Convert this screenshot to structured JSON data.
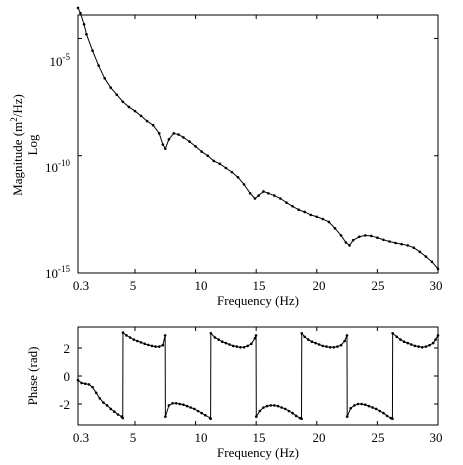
{
  "chart_data": [
    {
      "type": "line",
      "title": "",
      "xlabel": "Frequency (Hz)",
      "ylabel_line1": "Magnitude (m",
      "ylabel_sup": "2",
      "ylabel_line1_end": "/Hz)",
      "ylabel_line2": "Log",
      "xlim": [
        0.3,
        30
      ],
      "ylim": [
        1e-15,
        0.0001
      ],
      "yscale": "log",
      "grid": false,
      "xticks": [
        0.3,
        5,
        10,
        15,
        20,
        25,
        30
      ],
      "xtick_labels": [
        "0.3",
        "5",
        "10",
        "15",
        "20",
        "25",
        "30"
      ],
      "yticks": [
        1e-05,
        1e-10,
        1e-15
      ],
      "ytick_bases": [
        "10",
        "10",
        "10"
      ],
      "ytick_exponents": [
        "-5",
        "-10",
        "-15"
      ],
      "series": [
        {
          "color": "#000000",
          "marker": "dot",
          "x": [
            0.3,
            0.5,
            0.8,
            1.0,
            1.5,
            2.0,
            2.5,
            3.0,
            3.5,
            4.0,
            4.5,
            5.0,
            5.5,
            6.0,
            6.5,
            7.0,
            7.3,
            7.5,
            7.8,
            8.2,
            8.6,
            9.0,
            9.5,
            10.0,
            10.5,
            11.0,
            11.5,
            12.0,
            12.5,
            13.0,
            13.5,
            14.0,
            14.5,
            14.9,
            15.2,
            15.6,
            16.0,
            16.5,
            17.0,
            17.5,
            18.0,
            18.5,
            19.0,
            19.5,
            20.0,
            20.5,
            21.0,
            21.5,
            22.0,
            22.4,
            22.7,
            23.0,
            23.5,
            24.0,
            24.5,
            25.0,
            25.5,
            26.0,
            26.5,
            27.0,
            27.5,
            28.0,
            28.5,
            29.0,
            29.5,
            30.0
          ],
          "y": [
            0.0002,
            0.00012,
            4e-05,
            1.5e-05,
            3e-06,
            7e-07,
            2e-07,
            8e-08,
            4e-08,
            2e-08,
            1.2e-08,
            8e-09,
            5e-09,
            3e-09,
            2e-09,
            9e-10,
            3e-10,
            2e-10,
            5e-10,
            9e-10,
            8e-10,
            6e-10,
            4e-10,
            2.5e-10,
            1.5e-10,
            1e-10,
            6e-11,
            4.5e-11,
            3e-11,
            2e-11,
            1.2e-11,
            6e-12,
            2.5e-12,
            1.5e-12,
            2e-12,
            3e-12,
            2.5e-12,
            2e-12,
            1.5e-12,
            1e-12,
            7e-13,
            5e-13,
            4e-13,
            3e-13,
            2.5e-13,
            2e-13,
            1.5e-13,
            8e-14,
            4e-14,
            2e-14,
            1.5e-14,
            2.5e-14,
            3.5e-14,
            4e-14,
            3.8e-14,
            3.2e-14,
            2.6e-14,
            2.2e-14,
            1.9e-14,
            1.7e-14,
            1.5e-14,
            1.2e-14,
            8e-15,
            5e-15,
            3e-15,
            1.5e-15
          ]
        }
      ]
    },
    {
      "type": "line",
      "title": "",
      "xlabel": "Frequency (Hz)",
      "ylabel": "Phase (rad)",
      "xlim": [
        0.3,
        30
      ],
      "ylim": [
        -3.5,
        3.5
      ],
      "grid": false,
      "xticks": [
        0.3,
        5,
        10,
        15,
        20,
        25,
        30
      ],
      "xtick_labels": [
        "0.3",
        "5",
        "10",
        "15",
        "20",
        "25",
        "30"
      ],
      "yticks": [
        2,
        0,
        -2
      ],
      "ytick_labels": [
        "2",
        "0",
        "-2"
      ],
      "series": [
        {
          "color": "#000000",
          "marker": "dot",
          "x": [
            0.3,
            0.6,
            0.9,
            1.2,
            1.5,
            1.8,
            2.1,
            2.4,
            2.7,
            3.0,
            3.3,
            3.6,
            3.9,
            3.99,
            4.01,
            4.3,
            4.6,
            4.9,
            5.2,
            5.5,
            5.8,
            6.1,
            6.4,
            6.7,
            7.0,
            7.3,
            7.49,
            7.51,
            7.8,
            8.1,
            8.4,
            8.7,
            9.0,
            9.3,
            9.6,
            9.9,
            10.2,
            10.5,
            10.8,
            11.2,
            11.24,
            11.26,
            11.6,
            11.9,
            12.2,
            12.5,
            12.8,
            13.1,
            13.4,
            13.7,
            14.0,
            14.3,
            14.6,
            14.9,
            14.99,
            15.01,
            15.3,
            15.6,
            15.9,
            16.2,
            16.5,
            16.8,
            17.1,
            17.4,
            17.7,
            18.0,
            18.3,
            18.6,
            18.74,
            18.76,
            19.0,
            19.3,
            19.6,
            19.9,
            20.2,
            20.5,
            20.8,
            21.1,
            21.4,
            21.7,
            22.0,
            22.3,
            22.49,
            22.51,
            22.8,
            23.1,
            23.4,
            23.7,
            24.0,
            24.3,
            24.6,
            24.9,
            25.2,
            25.5,
            25.8,
            26.1,
            26.24,
            26.26,
            26.6,
            26.9,
            27.2,
            27.5,
            27.8,
            28.1,
            28.4,
            28.7,
            29.0,
            29.3,
            29.6,
            29.8,
            30.0
          ],
          "y": [
            -0.3,
            -0.5,
            -0.55,
            -0.6,
            -0.8,
            -1.2,
            -1.6,
            -1.9,
            -2.1,
            -2.35,
            -2.55,
            -2.75,
            -2.9,
            -3.0,
            3.1,
            2.9,
            2.75,
            2.6,
            2.5,
            2.4,
            2.3,
            2.22,
            2.15,
            2.1,
            2.1,
            2.2,
            2.9,
            -2.9,
            -2.1,
            -1.95,
            -1.95,
            -2.0,
            -2.05,
            -2.15,
            -2.25,
            -2.35,
            -2.5,
            -2.65,
            -2.8,
            -3.0,
            -3.05,
            3.05,
            2.75,
            2.6,
            2.45,
            2.35,
            2.25,
            2.15,
            2.1,
            2.05,
            2.05,
            2.15,
            2.3,
            2.7,
            2.9,
            -2.9,
            -2.5,
            -2.25,
            -2.15,
            -2.1,
            -2.1,
            -2.15,
            -2.25,
            -2.35,
            -2.5,
            -2.65,
            -2.85,
            -3.0,
            -3.05,
            3.05,
            2.8,
            2.6,
            2.45,
            2.35,
            2.25,
            2.15,
            2.1,
            2.05,
            2.05,
            2.1,
            2.2,
            2.5,
            2.9,
            -2.9,
            -2.3,
            -2.1,
            -2.0,
            -2.0,
            -2.05,
            -2.15,
            -2.25,
            -2.35,
            -2.5,
            -2.65,
            -2.85,
            -3.0,
            -3.05,
            3.05,
            2.8,
            2.6,
            2.45,
            2.35,
            2.25,
            2.15,
            2.1,
            2.05,
            2.1,
            2.2,
            2.35,
            2.6,
            2.9
          ]
        }
      ]
    }
  ]
}
